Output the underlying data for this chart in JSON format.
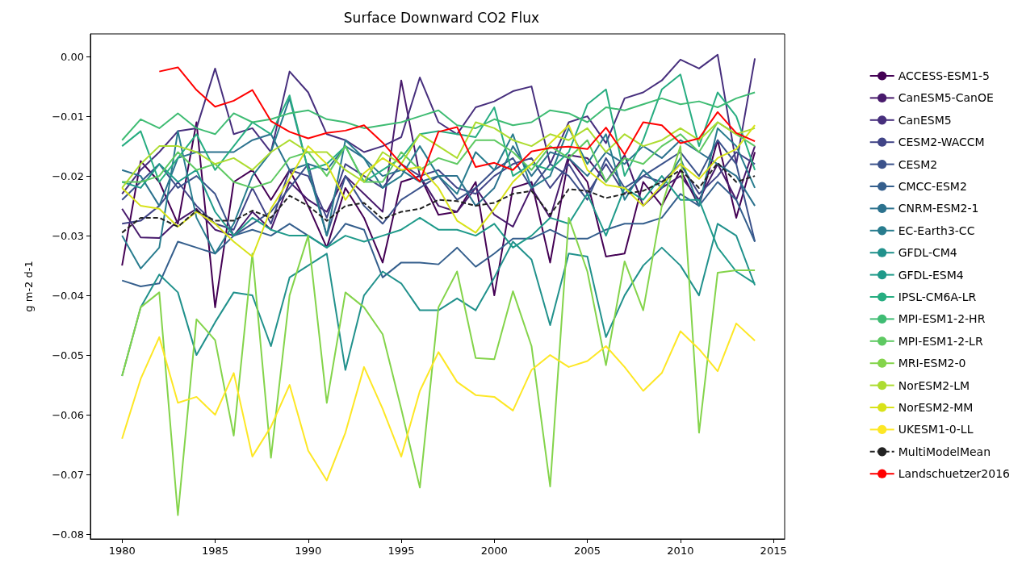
{
  "chart_data": {
    "type": "line",
    "title": "Surface Downward CO2 Flux",
    "ylabel": "g m-2 d-1",
    "x": [
      1980,
      1981,
      1982,
      1983,
      1984,
      1985,
      1986,
      1987,
      1988,
      1989,
      1990,
      1991,
      1992,
      1993,
      1994,
      1995,
      1996,
      1997,
      1998,
      1999,
      2000,
      2001,
      2002,
      2003,
      2004,
      2005,
      2006,
      2007,
      2008,
      2009,
      2010,
      2011,
      2012,
      2013,
      2014
    ],
    "xlim": [
      1978.3,
      2015.6
    ],
    "xticks": [
      1980,
      1985,
      1990,
      1995,
      2000,
      2005,
      2010,
      2015
    ],
    "ylim": [
      -0.0808,
      0.0038
    ],
    "yticks": [
      {
        "value": -0.08,
        "label": "−0.08"
      },
      {
        "value": -0.07,
        "label": "−0.07"
      },
      {
        "value": -0.06,
        "label": "−0.06"
      },
      {
        "value": -0.05,
        "label": "−0.05"
      },
      {
        "value": -0.04,
        "label": "−0.04"
      },
      {
        "value": -0.03,
        "label": "−0.03"
      },
      {
        "value": -0.02,
        "label": "−0.02"
      },
      {
        "value": -0.01,
        "label": "−0.01"
      },
      {
        "value": 0,
        "label": "0.00"
      }
    ],
    "grid": false,
    "legend": "right",
    "line_style": "solid",
    "series": [
      {
        "name": "ACCESS-ESM1-5",
        "color": "#440154",
        "values": [
          -0.035,
          -0.0175,
          -0.021,
          -0.028,
          -0.011,
          -0.042,
          -0.021,
          -0.019,
          -0.024,
          -0.019,
          -0.025,
          -0.032,
          -0.022,
          -0.027,
          -0.0345,
          -0.021,
          -0.02,
          -0.0265,
          -0.026,
          -0.021,
          -0.04,
          -0.022,
          -0.021,
          -0.0345,
          -0.017,
          -0.021,
          -0.0335,
          -0.033,
          -0.021,
          -0.025,
          -0.019,
          -0.025,
          -0.014,
          -0.027,
          -0.016
        ]
      },
      {
        "name": "CanESM5-CanOE",
        "color": "#481a6c",
        "values": [
          -0.0255,
          -0.0303,
          -0.0304,
          -0.0275,
          -0.0255,
          -0.029,
          -0.03,
          -0.026,
          -0.029,
          -0.021,
          -0.024,
          -0.026,
          -0.02,
          -0.023,
          -0.026,
          -0.004,
          -0.02,
          -0.025,
          -0.026,
          -0.022,
          -0.0265,
          -0.0285,
          -0.022,
          -0.027,
          -0.0165,
          -0.017,
          -0.021,
          -0.0165,
          -0.025,
          -0.022,
          -0.02,
          -0.024,
          -0.018,
          -0.024,
          -0.015
        ]
      },
      {
        "name": "CanESM5",
        "color": "#472f7d",
        "values": [
          -0.023,
          -0.019,
          -0.016,
          -0.0125,
          -0.012,
          -0.002,
          -0.013,
          -0.012,
          -0.016,
          -0.0025,
          -0.006,
          -0.013,
          -0.014,
          -0.016,
          -0.015,
          -0.0135,
          -0.0035,
          -0.011,
          -0.013,
          -0.0085,
          -0.0075,
          -0.0058,
          -0.005,
          -0.018,
          -0.011,
          -0.01,
          -0.0145,
          -0.007,
          -0.006,
          -0.004,
          -0.0005,
          -0.002,
          0.0003,
          -0.018,
          -0.0003
        ]
      },
      {
        "name": "CESM2-WACCM",
        "color": "#414487",
        "values": [
          -0.028,
          -0.0275,
          -0.025,
          -0.021,
          -0.025,
          -0.028,
          -0.029,
          -0.022,
          -0.028,
          -0.019,
          -0.02,
          -0.027,
          -0.018,
          -0.02,
          -0.022,
          -0.018,
          -0.02,
          -0.019,
          -0.022,
          -0.023,
          -0.02,
          -0.018,
          -0.017,
          -0.022,
          -0.018,
          -0.023,
          -0.018,
          -0.023,
          -0.02,
          -0.021,
          -0.018,
          -0.023,
          -0.02,
          -0.016,
          -0.018
        ]
      },
      {
        "name": "CESM2",
        "color": "#3b528b",
        "values": [
          -0.024,
          -0.021,
          -0.018,
          -0.022,
          -0.02,
          -0.023,
          -0.03,
          -0.028,
          -0.026,
          -0.022,
          -0.018,
          -0.03,
          -0.02,
          -0.025,
          -0.028,
          -0.024,
          -0.022,
          -0.02,
          -0.024,
          -0.022,
          -0.019,
          -0.017,
          -0.022,
          -0.018,
          -0.02,
          -0.024,
          -0.017,
          -0.022,
          -0.02,
          -0.018,
          -0.016,
          -0.02,
          -0.014,
          -0.018,
          -0.031
        ]
      },
      {
        "name": "CMCC-ESM2",
        "color": "#355f8d",
        "values": [
          -0.0375,
          -0.0385,
          -0.038,
          -0.031,
          -0.032,
          -0.033,
          -0.03,
          -0.029,
          -0.03,
          -0.028,
          -0.03,
          -0.032,
          -0.028,
          -0.029,
          -0.037,
          -0.0345,
          -0.0345,
          -0.0348,
          -0.032,
          -0.0352,
          -0.033,
          -0.0305,
          -0.0305,
          -0.029,
          -0.0305,
          -0.0305,
          -0.029,
          -0.028,
          -0.028,
          -0.027,
          -0.023,
          -0.025,
          -0.021,
          -0.024,
          -0.031
        ]
      },
      {
        "name": "CNRM-ESM2-1",
        "color": "#2c728e",
        "values": [
          -0.019,
          -0.02,
          -0.025,
          -0.017,
          -0.016,
          -0.016,
          -0.016,
          -0.014,
          -0.013,
          -0.019,
          -0.018,
          -0.019,
          -0.015,
          -0.017,
          -0.02,
          -0.019,
          -0.021,
          -0.02,
          -0.02,
          -0.025,
          -0.022,
          -0.015,
          -0.02,
          -0.016,
          -0.017,
          -0.02,
          -0.016,
          -0.018,
          -0.015,
          -0.017,
          -0.014,
          -0.016,
          -0.018,
          -0.02,
          -0.025
        ]
      },
      {
        "name": "EC-Earth3-CC",
        "color": "#287c8e",
        "values": [
          -0.03,
          -0.0355,
          -0.032,
          -0.0125,
          -0.027,
          -0.033,
          -0.028,
          -0.02,
          -0.016,
          -0.007,
          -0.019,
          -0.03,
          -0.014,
          -0.017,
          -0.022,
          -0.02,
          -0.015,
          -0.02,
          -0.023,
          -0.016,
          -0.019,
          -0.013,
          -0.022,
          -0.02,
          -0.012,
          -0.018,
          -0.013,
          -0.024,
          -0.019,
          -0.022,
          -0.017,
          -0.025,
          -0.012,
          -0.015,
          -0.022
        ]
      },
      {
        "name": "GFDL-CM4",
        "color": "#21918c",
        "values": [
          -0.0535,
          -0.042,
          -0.0365,
          -0.0395,
          -0.05,
          -0.0445,
          -0.0395,
          -0.04,
          -0.0485,
          -0.037,
          -0.035,
          -0.033,
          -0.0525,
          -0.04,
          -0.036,
          -0.038,
          -0.0425,
          -0.0425,
          -0.0405,
          -0.0425,
          -0.037,
          -0.031,
          -0.034,
          -0.045,
          -0.033,
          -0.0335,
          -0.047,
          -0.04,
          -0.035,
          -0.032,
          -0.035,
          -0.04,
          -0.028,
          -0.03,
          -0.0383
        ]
      },
      {
        "name": "GFDL-ESM4",
        "color": "#1f9a8a",
        "values": [
          -0.021,
          -0.022,
          -0.018,
          -0.021,
          -0.019,
          -0.026,
          -0.03,
          -0.027,
          -0.029,
          -0.03,
          -0.03,
          -0.032,
          -0.03,
          -0.031,
          -0.03,
          -0.029,
          -0.027,
          -0.029,
          -0.029,
          -0.03,
          -0.028,
          -0.032,
          -0.03,
          -0.027,
          -0.028,
          -0.023,
          -0.03,
          -0.022,
          -0.024,
          -0.02,
          -0.024,
          -0.024,
          -0.032,
          -0.036,
          -0.038
        ]
      },
      {
        "name": "IPSL-CM6A-LR",
        "color": "#27ad81",
        "values": [
          -0.015,
          -0.0125,
          -0.021,
          -0.017,
          -0.013,
          -0.019,
          -0.015,
          -0.011,
          -0.013,
          -0.0065,
          -0.019,
          -0.018,
          -0.015,
          -0.021,
          -0.019,
          -0.017,
          -0.013,
          -0.0125,
          -0.013,
          -0.0135,
          -0.0085,
          -0.02,
          -0.018,
          -0.019,
          -0.016,
          -0.008,
          -0.0055,
          -0.02,
          -0.014,
          -0.0055,
          -0.003,
          -0.015,
          -0.006,
          -0.01,
          -0.019
        ]
      },
      {
        "name": "MPI-ESM1-2-HR",
        "color": "#3fbc73",
        "values": [
          -0.014,
          -0.0105,
          -0.012,
          -0.0095,
          -0.012,
          -0.013,
          -0.0095,
          -0.011,
          -0.0105,
          -0.0095,
          -0.009,
          -0.0105,
          -0.011,
          -0.012,
          -0.0115,
          -0.011,
          -0.01,
          -0.009,
          -0.0115,
          -0.012,
          -0.0105,
          -0.0115,
          -0.011,
          -0.009,
          -0.0095,
          -0.011,
          -0.0085,
          -0.009,
          -0.008,
          -0.007,
          -0.008,
          -0.0075,
          -0.0085,
          -0.007,
          -0.006
        ]
      },
      {
        "name": "MPI-ESM1-2-LR",
        "color": "#5ec962",
        "values": [
          -0.021,
          -0.021,
          -0.02,
          -0.016,
          -0.019,
          -0.018,
          -0.021,
          -0.022,
          -0.021,
          -0.017,
          -0.016,
          -0.02,
          -0.015,
          -0.021,
          -0.021,
          -0.016,
          -0.019,
          -0.017,
          -0.018,
          -0.014,
          -0.014,
          -0.016,
          -0.019,
          -0.015,
          -0.017,
          -0.014,
          -0.021,
          -0.017,
          -0.018,
          -0.015,
          -0.013,
          -0.016,
          -0.011,
          -0.013,
          -0.015
        ]
      },
      {
        "name": "MRI-ESM2-0",
        "color": "#84d44b",
        "values": [
          -0.0535,
          -0.042,
          -0.0395,
          -0.0768,
          -0.044,
          -0.0475,
          -0.0635,
          -0.033,
          -0.0672,
          -0.04,
          -0.03,
          -0.058,
          -0.0395,
          -0.042,
          -0.0465,
          -0.059,
          -0.0722,
          -0.042,
          -0.036,
          -0.0505,
          -0.0507,
          -0.0393,
          -0.0485,
          -0.072,
          -0.027,
          -0.036,
          -0.0517,
          -0.0343,
          -0.0425,
          -0.025,
          -0.015,
          -0.063,
          -0.0362,
          -0.0358,
          -0.0358
        ]
      },
      {
        "name": "NorESM2-LM",
        "color": "#addc30",
        "values": [
          -0.022,
          -0.018,
          -0.015,
          -0.015,
          -0.016,
          -0.018,
          -0.017,
          -0.019,
          -0.016,
          -0.014,
          -0.016,
          -0.016,
          -0.019,
          -0.021,
          -0.016,
          -0.018,
          -0.013,
          -0.015,
          -0.017,
          -0.011,
          -0.012,
          -0.014,
          -0.015,
          -0.013,
          -0.014,
          -0.012,
          -0.016,
          -0.013,
          -0.015,
          -0.014,
          -0.012,
          -0.014,
          -0.011,
          -0.013,
          -0.012
        ]
      },
      {
        "name": "NorESM2-MM",
        "color": "#d8e219",
        "values": [
          -0.022,
          -0.025,
          -0.0255,
          -0.0285,
          -0.026,
          -0.028,
          -0.031,
          -0.0335,
          -0.0255,
          -0.0205,
          -0.015,
          -0.018,
          -0.024,
          -0.0195,
          -0.017,
          -0.019,
          -0.0185,
          -0.022,
          -0.0275,
          -0.0295,
          -0.0255,
          -0.021,
          -0.018,
          -0.0145,
          -0.0115,
          -0.019,
          -0.0215,
          -0.022,
          -0.025,
          -0.0215,
          -0.018,
          -0.0205,
          -0.017,
          -0.0155,
          -0.0115
        ]
      },
      {
        "name": "UKESM1-0-LL",
        "color": "#fde725",
        "values": [
          -0.064,
          -0.054,
          -0.047,
          -0.058,
          -0.057,
          -0.06,
          -0.053,
          -0.067,
          -0.062,
          -0.055,
          -0.066,
          -0.071,
          -0.063,
          -0.052,
          -0.059,
          -0.067,
          -0.056,
          -0.0495,
          -0.0545,
          -0.0567,
          -0.057,
          -0.0593,
          -0.0525,
          -0.05,
          -0.052,
          -0.051,
          -0.0485,
          -0.052,
          -0.056,
          -0.053,
          -0.046,
          -0.049,
          -0.0527,
          -0.0447,
          -0.0476
        ]
      },
      {
        "name": "MultiModelMean",
        "color": "#222222",
        "line_style": "dashed",
        "values": [
          -0.0295,
          -0.027,
          -0.027,
          -0.0285,
          -0.0258,
          -0.0275,
          -0.0275,
          -0.0258,
          -0.027,
          -0.0233,
          -0.025,
          -0.0275,
          -0.025,
          -0.0245,
          -0.0272,
          -0.026,
          -0.0255,
          -0.024,
          -0.0242,
          -0.025,
          -0.0245,
          -0.023,
          -0.0225,
          -0.0265,
          -0.0222,
          -0.0225,
          -0.0237,
          -0.023,
          -0.0225,
          -0.021,
          -0.019,
          -0.022,
          -0.0178,
          -0.021,
          -0.02
        ]
      },
      {
        "name": "Landschuetzer2016",
        "color": "#ff0000",
        "values": [
          null,
          null,
          -0.0025,
          -0.0018,
          -0.0056,
          -0.0084,
          -0.0074,
          -0.0056,
          -0.0108,
          -0.0126,
          -0.0137,
          -0.0128,
          -0.0124,
          -0.0115,
          -0.0144,
          -0.018,
          -0.0209,
          -0.0126,
          -0.0118,
          -0.0185,
          -0.0178,
          -0.019,
          -0.0159,
          -0.0153,
          -0.0151,
          -0.0155,
          -0.0119,
          -0.0164,
          -0.011,
          -0.0115,
          -0.0145,
          -0.0137,
          -0.0093,
          -0.0128,
          -0.0142
        ]
      }
    ]
  }
}
